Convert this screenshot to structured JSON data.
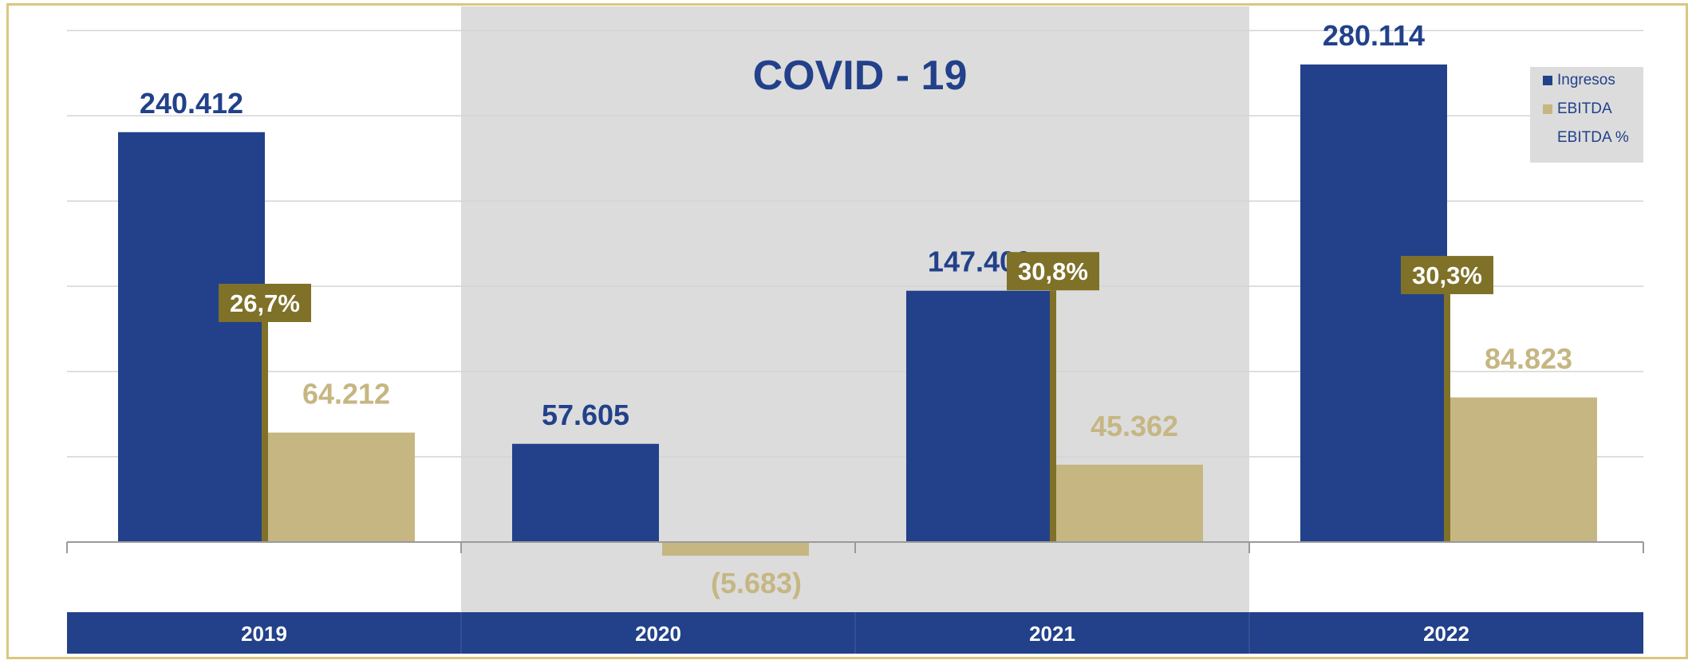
{
  "chart_data": {
    "type": "bar",
    "categories": [
      "2019",
      "2020",
      "2021",
      "2022"
    ],
    "series": [
      {
        "name": "Ingresos",
        "values": [
          240412,
          57605,
          147400,
          280114
        ],
        "labels": [
          "240.412",
          "57.605",
          "147.400",
          "280.114"
        ],
        "color": "#22418a"
      },
      {
        "name": "EBITDA",
        "values": [
          64212,
          -5683,
          45362,
          84823
        ],
        "labels": [
          "64.212",
          "(5.683)",
          "45.362",
          "84.823"
        ],
        "color": "#c6b682"
      },
      {
        "name": "EBITDA %",
        "values": [
          26.7,
          null,
          30.8,
          30.3
        ],
        "labels": [
          "26,7%",
          "",
          "30,8%",
          "30,3%"
        ],
        "color": "#7f7128"
      }
    ],
    "annotation": "COVID - 19",
    "highlight_categories": [
      "2020",
      "2021"
    ],
    "highlight_color": "#dcdcdc",
    "ylim": [
      0,
      300000
    ],
    "grid": true,
    "legend": "top-right",
    "category_band_color": "#22418a"
  }
}
